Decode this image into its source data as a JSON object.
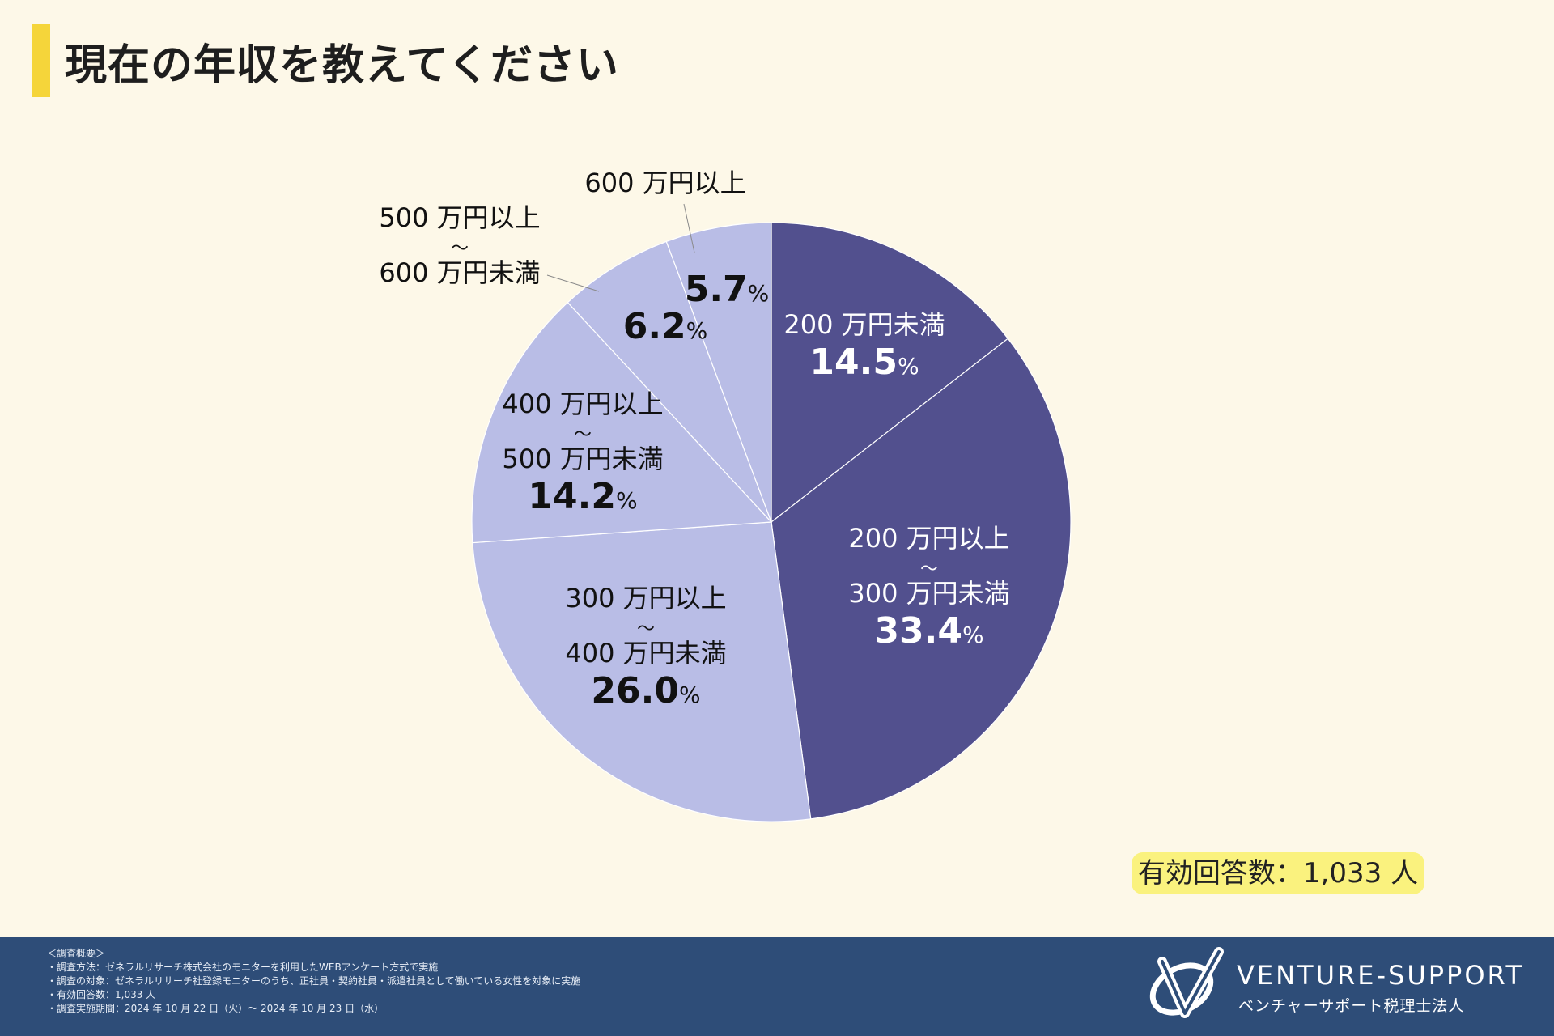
{
  "title": "現在の年収を教えてください",
  "chart_data": {
    "type": "pie",
    "title": "現在の年収を教えてください",
    "unit": "%",
    "categories": [
      "200 万円未満",
      "200 万円以上〜300 万円未満",
      "300 万円以上〜400 万円未満",
      "400 万円以上〜500 万円未満",
      "500 万円以上〜600 万円未満",
      "600 万円以上"
    ],
    "values": [
      14.5,
      33.4,
      26.0,
      14.2,
      6.2,
      5.7
    ],
    "value_labels": [
      "14.5",
      "33.4",
      "26.0",
      "14.2",
      "6.2",
      "5.7"
    ],
    "label_lines": [
      [
        "200 万円未満"
      ],
      [
        "200 万円以上",
        "〜",
        "300 万円未満"
      ],
      [
        "300 万円以上",
        "〜",
        "400 万円未満"
      ],
      [
        "400 万円以上",
        "〜",
        "500 万円未満"
      ],
      [
        "500 万円以上",
        "〜",
        "600 万円未満"
      ],
      [
        "600 万円以上"
      ]
    ],
    "colors": [
      "#52508e",
      "#52508e",
      "#b9bde6",
      "#b9bde6",
      "#b9bde6",
      "#b9bde6"
    ],
    "text_colors": [
      "#ffffff",
      "#ffffff",
      "#111111",
      "#111111",
      "#111111",
      "#111111"
    ],
    "start": "12 o'clock",
    "direction": "clockwise"
  },
  "respondents": "有効回答数：1,033 人",
  "footer": {
    "notes": [
      "＜調査概要＞",
      "・調査方法：ゼネラルリサーチ株式会社のモニターを利用したWEBアンケート方式で実施",
      "・調査の対象：ゼネラルリサーチ社登録モニターのうち、正社員・契約社員・派遣社員として働いている女性を対象に実施",
      "・有効回答数：1,033 人",
      "・調査実施期間：2024 年 10 月 22 日（火）〜 2024 年 10 月 23 日（水）"
    ],
    "brand_name": "VENTURE-SUPPORT",
    "brand_sub": "ベンチャーサポート税理士法人",
    "logo_icon": "venture-support-logo-icon"
  }
}
